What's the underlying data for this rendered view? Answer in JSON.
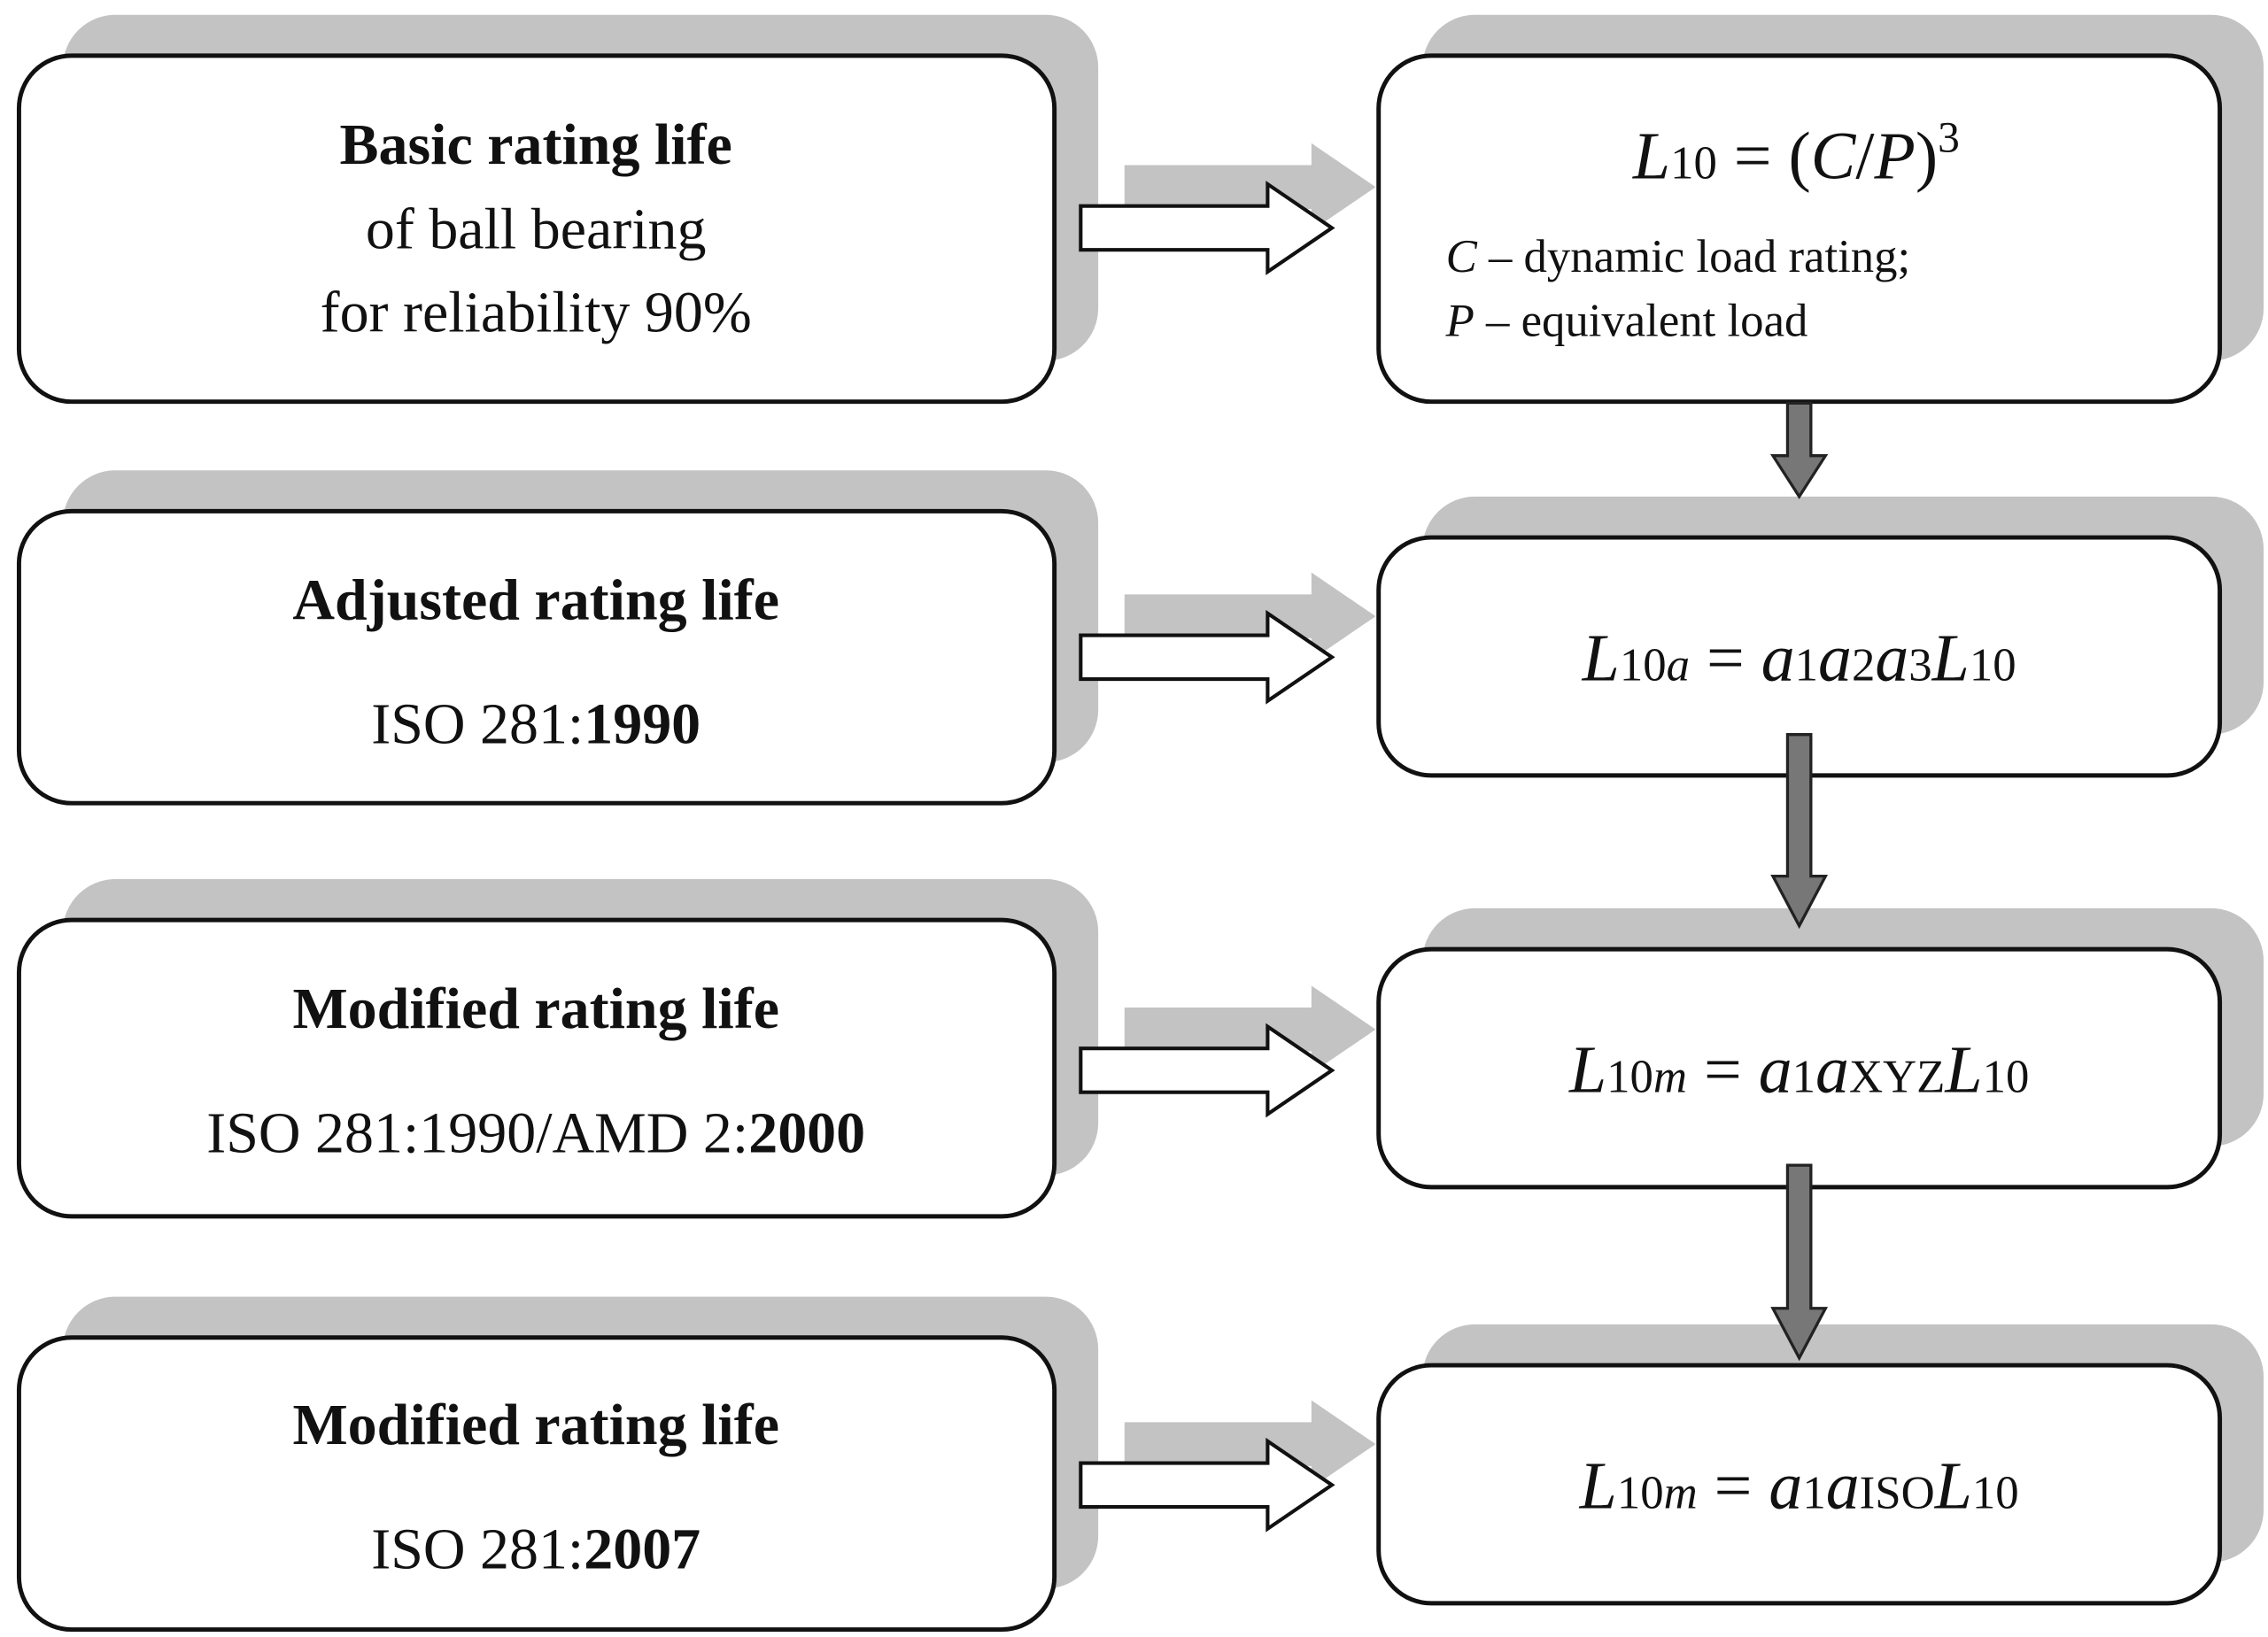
{
  "left": [
    {
      "title": "Basic rating life",
      "lines": [
        "of ball bearing",
        "for reliability 90%"
      ]
    },
    {
      "title": "Adjusted rating life",
      "standard": "ISO 281:",
      "year": "1990"
    },
    {
      "title": "Modified rating life",
      "standard": "ISO 281:1990/AMD 2:",
      "year": "2000"
    },
    {
      "title": "Modified rating life",
      "standard": "ISO 281:",
      "year": "2007"
    }
  ],
  "right": [
    {
      "formula": [
        "L",
        "10",
        " = (",
        "C",
        "/",
        "P",
        ")",
        "3"
      ],
      "notes": [
        [
          "C",
          " – dynamic load rating;"
        ],
        [
          "P",
          " – equivalent load"
        ]
      ]
    },
    {
      "formula": [
        "L",
        "10",
        "a",
        " = ",
        "a",
        "1",
        "a",
        "2",
        "a",
        "3",
        "L",
        "10"
      ]
    },
    {
      "formula": [
        "L",
        "10",
        "m",
        " = ",
        "a",
        "1",
        "a",
        "XYZ",
        "L",
        "10"
      ]
    },
    {
      "formula": [
        "L",
        "10",
        "m",
        " = ",
        "a",
        "1",
        "a",
        "ISO",
        "L",
        "10"
      ]
    }
  ]
}
